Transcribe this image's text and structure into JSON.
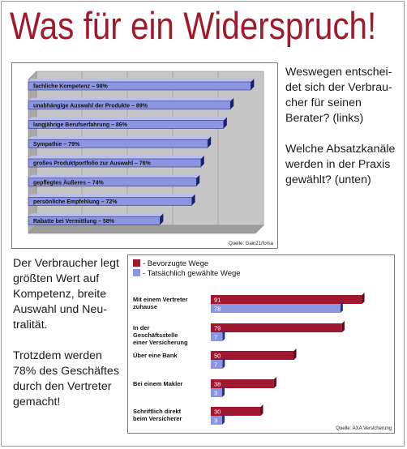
{
  "headline": "Was für ein Widerspruch!",
  "text_right": "Weswegen entschei-\ndet sich der Verbrau-\ncher für seinen\nBerater? (links)\n\nWelche Absatzkanäle\nwerden in der Praxis\ngewählt? (unten)",
  "text_left": "Der Verbraucher legt\ngrößten Wert auf\nKompetenz, breite\nAuswahl und Neu-\ntralität.\n\nTrotzdem werden\n78% des Geschäftes\ndurch den Vertreter\ngemacht!",
  "colors": {
    "headline": "#a3192c",
    "bar_blue": "#8c96e0",
    "bar_red": "#a01830",
    "plot_bg": "#c6c6c6"
  },
  "chart_data": [
    {
      "type": "bar",
      "orientation": "horizontal",
      "categories": [
        "fachliche Kompetenz – 98%",
        "unabhängige Auswahl der Produkte – 89%",
        "langjährige Berufserfahrung – 86%",
        "Sympathie – 79%",
        "großes Produktportfolio zur Auswahl – 76%",
        "gepflegtes Äußeres – 74%",
        "persönliche Empfehlung – 72%",
        "Rabatte bei Vermittlung – 58%"
      ],
      "values": [
        98,
        89,
        86,
        79,
        76,
        74,
        72,
        58
      ],
      "xlim": [
        0,
        100
      ],
      "grid": true,
      "source": "Quelle: Gain21/forsa"
    },
    {
      "type": "bar",
      "orientation": "horizontal",
      "categories": [
        "Mit einem Vertreter zuhause",
        "In der Geschäftsstelle einer Versicherung",
        "Über eine Bank",
        "Bei einem Makler",
        "Schriftlich direkt beim Versicherer"
      ],
      "series": [
        {
          "name": "- Bevorzugte Wege",
          "values": [
            91,
            79,
            50,
            38,
            30
          ]
        },
        {
          "name": "- Tatsächlich gewählte Wege",
          "values": [
            78,
            7,
            7,
            3,
            3
          ]
        }
      ],
      "xlim": [
        0,
        100
      ],
      "legend_position": "top-left",
      "source": "Quelle: AXA Versicherung"
    }
  ]
}
